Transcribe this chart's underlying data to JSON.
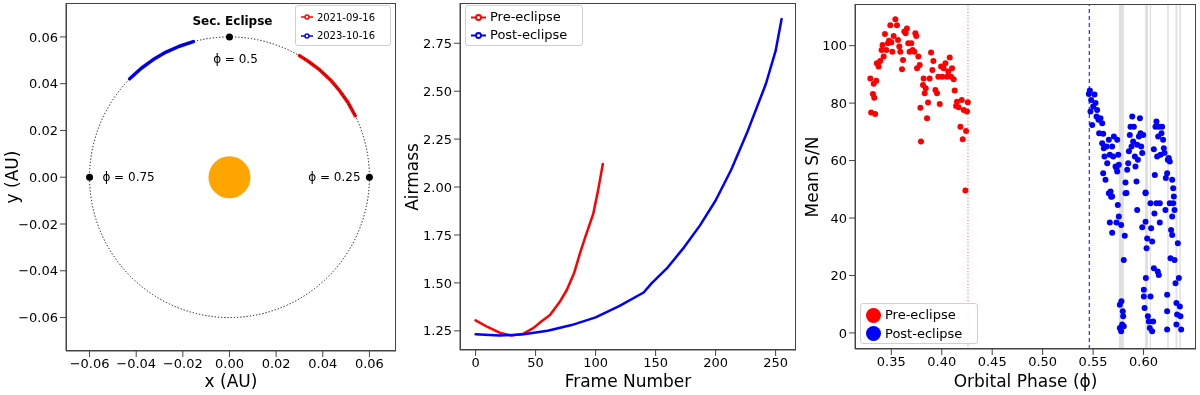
{
  "chart_data": [
    {
      "type": "line",
      "xlabel": "x (AU)",
      "ylabel": "y (AU)",
      "xlim": [
        -0.0701,
        0.0714
      ],
      "ylim": [
        -0.0743,
        0.0745
      ],
      "xticks": [
        {
          "value": -0.06,
          "label": "−0.06"
        },
        {
          "value": -0.04,
          "label": "−0.04"
        },
        {
          "value": -0.02,
          "label": "−0.02"
        },
        {
          "value": 0,
          "label": "0.00"
        },
        {
          "value": 0.02,
          "label": "0.02"
        },
        {
          "value": 0.04,
          "label": "0.04"
        },
        {
          "value": 0.06,
          "label": "0.06"
        }
      ],
      "yticks": [
        {
          "value": -0.06,
          "label": "−0.06"
        },
        {
          "value": -0.04,
          "label": "−0.04"
        },
        {
          "value": -0.02,
          "label": "−0.02"
        },
        {
          "value": 0,
          "label": "0.00"
        },
        {
          "value": 0.02,
          "label": "0.02"
        },
        {
          "value": 0.04,
          "label": "0.04"
        },
        {
          "value": 0.06,
          "label": "0.06"
        }
      ],
      "legend": "top right",
      "series": [
        {
          "name": "2021-09-16",
          "color": "#ff0000",
          "x": [
            0.03,
            0.0336,
            0.0386,
            0.0432,
            0.0473,
            0.0509,
            0.0539
          ],
          "values": [
            0.052,
            0.0497,
            0.046,
            0.0417,
            0.0369,
            0.0318,
            0.0263
          ]
        },
        {
          "name": "2023-10-16",
          "color": "#0000ff",
          "x": [
            -0.0428,
            -0.0378,
            -0.0327,
            -0.0272,
            -0.0215,
            -0.0155
          ],
          "values": [
            0.0421,
            0.0466,
            0.0503,
            0.0535,
            0.056,
            0.058
          ]
        },
        {
          "type": "scatter",
          "color": "#000000",
          "marker": "circle",
          "x": [
            0,
            0.06,
            -0.06
          ],
          "values": [
            0.06,
            0,
            0
          ]
        }
      ],
      "annotations": [
        {
          "text": "Sec. Eclipse",
          "x": 0,
          "y": 0.06
        },
        {
          "text": "ϕ = 0.5",
          "x": 0,
          "y": 0.06
        },
        {
          "text": "ϕ = 0.75",
          "x": -0.06,
          "y": 0
        },
        {
          "text": "ϕ = 0.25",
          "x": 0.06,
          "y": 0
        }
      ]
    },
    {
      "type": "line",
      "xlabel": "Frame Number",
      "ylabel": "Airmass",
      "xlim": [
        -13,
        267
      ],
      "ylim": [
        1.15,
        2.96
      ],
      "xticks": [
        0,
        50,
        100,
        150,
        200,
        250
      ],
      "yticks": [
        1.25,
        {
          "value": 1.5,
          "label": "1.50"
        },
        1.75,
        {
          "value": 2,
          "label": "2.00"
        },
        2.25,
        {
          "value": 2.5,
          "label": "2.50"
        },
        2.75
      ],
      "legend": "top left",
      "series": [
        {
          "name": "Pre-eclipse",
          "color": "#ff0000",
          "x": [
            0,
            10,
            20,
            30,
            40,
            48,
            55,
            62,
            70,
            76,
            82,
            87,
            92,
            98,
            102,
            106
          ],
          "values": [
            1.305,
            1.27,
            1.24,
            1.225,
            1.235,
            1.264,
            1.3,
            1.333,
            1.4,
            1.463,
            1.55,
            1.655,
            1.75,
            1.86,
            1.98,
            2.12
          ]
        },
        {
          "name": "Post-eclipse",
          "color": "#0000ff",
          "x": [
            0,
            20,
            40,
            60,
            80,
            100,
            120,
            140,
            147,
            160,
            173,
            187,
            200,
            213,
            226,
            242,
            250,
            255
          ],
          "values": [
            1.232,
            1.225,
            1.232,
            1.25,
            1.28,
            1.32,
            1.38,
            1.45,
            1.5,
            1.58,
            1.68,
            1.8,
            1.93,
            2.09,
            2.28,
            2.54,
            2.71,
            2.876
          ]
        }
      ]
    },
    {
      "type": "scatter",
      "xlabel": "Orbital Phase (ϕ)",
      "ylabel": "Mean S/N",
      "xlim": [
        0.314,
        0.652
      ],
      "ylim": [
        -5.6,
        114.5
      ],
      "xticks": [
        0.35,
        {
          "value": 0.4,
          "label": "0.40"
        },
        0.45,
        {
          "value": 0.5,
          "label": "0.50"
        },
        0.55,
        {
          "value": 0.6,
          "label": "0.60"
        }
      ],
      "yticks": [
        0,
        20,
        40,
        60,
        80,
        100
      ],
      "legend": "bottom left",
      "marker": "circle",
      "ref_lines": [
        {
          "axis": "x",
          "value": 0.426,
          "color": "#ff6666",
          "line_style": "dotted"
        },
        {
          "axis": "x",
          "value": 0.5462,
          "color": "#0000ff",
          "line_style": "dashed"
        }
      ],
      "bands": [
        {
          "axis": "x",
          "from": 0.5755,
          "to": 0.5805,
          "color": "#e0e0e0"
        },
        {
          "axis": "x",
          "from": 0.6015,
          "to": 0.6045,
          "color": "#e0e0e0"
        },
        {
          "axis": "x",
          "from": 0.6062,
          "to": 0.6075,
          "color": "#e0e0e0"
        },
        {
          "axis": "x",
          "from": 0.6235,
          "to": 0.625,
          "color": "#e0e0e0"
        },
        {
          "axis": "x",
          "from": 0.6317,
          "to": 0.6335,
          "color": "#e0e0e0"
        },
        {
          "axis": "x",
          "from": 0.6355,
          "to": 0.637,
          "color": "#e0e0e0"
        }
      ],
      "series": [
        {
          "name": "Pre-eclipse",
          "color": "#ff0000",
          "x": [
            0.3292,
            0.33,
            0.3318,
            0.3331,
            0.334,
            0.3325,
            0.3351,
            0.3357,
            0.3374,
            0.339,
            0.3403,
            0.3413,
            0.3424,
            0.3437,
            0.345,
            0.3467,
            0.3477,
            0.349,
            0.35,
            0.351,
            0.3523,
            0.354,
            0.3556,
            0.3566,
            0.3579,
            0.3589,
            0.3606,
            0.3616,
            0.3629,
            0.3642,
            0.3655,
            0.3668,
            0.3681,
            0.3698,
            0.3711,
            0.3728,
            0.3738,
            0.3747,
            0.3755,
            0.3768,
            0.3781,
            0.3788,
            0.3794,
            0.3814,
            0.382,
            0.3831,
            0.3841,
            0.3854,
            0.3864,
            0.388,
            0.3894,
            0.3907,
            0.3917,
            0.3937,
            0.3953,
            0.3966,
            0.398,
            0.3993,
            0.4006,
            0.4019,
            0.4036,
            0.4052,
            0.4065,
            0.4079,
            0.4092,
            0.4102,
            0.4118,
            0.4128,
            0.4142,
            0.4151,
            0.4168,
            0.4185,
            0.4198,
            0.4208,
            0.4218,
            0.4234,
            0.4241,
            0.425,
            0.4258
          ],
          "values": [
            88.6,
            76.7,
            83.2,
            81.9,
            76.2,
            86.7,
            87.8,
            93.9,
            92.7,
            94.7,
            98.5,
            100.2,
            96.2,
            104.1,
            98.5,
            100.8,
            101.7,
            107.1,
            101.2,
            97.9,
            103.4,
            109.2,
            107.1,
            102,
            99.7,
            97.9,
            91.8,
            95,
            104.9,
            104.3,
            106,
            100.8,
            97.9,
            100.8,
            98.5,
            97.9,
            104.3,
            103.4,
            92.1,
            96.2,
            93.3,
            78.4,
            66.6,
            86.3,
            88.6,
            83.4,
            85.2,
            74.7,
            80.2,
            88.6,
            97.6,
            91.5,
            94.7,
            84.6,
            83.4,
            89.2,
            79.7,
            92.7,
            89.2,
            92.1,
            93.9,
            89.2,
            91,
            95.9,
            89.2,
            92.1,
            88.3,
            84.4,
            79,
            80.5,
            78.6,
            71.8,
            81.1,
            67.4,
            77.6,
            49.6,
            70.3,
            77.1,
            80.3
          ]
        },
        {
          "name": "Post-eclipse",
          "color": "#0000ff",
          "x": [
            0.5458,
            0.5468,
            0.5481,
            0.5474,
            0.5491,
            0.5501,
            0.5514,
            0.5524,
            0.5534,
            0.554,
            0.5553,
            0.556,
            0.5573,
            0.559,
            0.56,
            0.559,
            0.5606,
            0.5613,
            0.56,
            0.5623,
            0.5633,
            0.564,
            0.5656,
            0.5666,
            0.5673,
            0.5689,
            0.5689,
            0.5699,
            0.5706,
            0.5722,
            0.5732,
            0.5739,
            0.5749,
            0.5755,
            0.5739,
            0.5821,
            0.5831,
            0.5838,
            0.5848,
            0.5855,
            0.5864,
            0.5871,
            0.5881,
            0.5888,
            0.5897,
            0.5904,
            0.5914,
            0.592,
            0.593,
            0.5937,
            0.5944,
            0.5954,
            0.5964,
            0.597,
            0.5977,
            0.5987,
            0.5997,
            0.602,
            0.6102,
            0.6112,
            0.6118,
            0.6128,
            0.6135,
            0.6145,
            0.6151,
            0.6168,
            0.6178,
            0.6184,
            0.6194,
            0.6201,
            0.6208,
            0.6221,
            0.6234,
            0.624,
            0.625,
            0.626,
            0.6284,
            0.6294,
            0.63,
            0.5656,
            0.5679,
            0.5666,
            0.5689,
            0.5732,
            0.5745,
            0.5755,
            0.5778,
            0.5765,
            0.5781,
            0.5794,
            0.5798,
            0.5765,
            0.5778,
            0.5788,
            0.5804,
            0.5804,
            0.5814,
            0.5821,
            0.5937,
            0.5987,
            0.602,
            0.6003,
            0.6003,
            0.601,
            0.6023,
            0.603,
            0.602,
            0.6036,
            0.6043,
            0.6052,
            0.6062,
            0.6069,
            0.6075,
            0.6085,
            0.6085,
            0.6095,
            0.6069,
            0.6102,
            0.6108,
            0.6128,
            0.6141,
            0.6151,
            0.6161,
            0.6161,
            0.6217,
            0.6234,
            0.6234,
            0.6234,
            0.626,
            0.6267,
            0.6273,
            0.6284,
            0.6284,
            0.6294,
            0.6307,
            0.6307,
            0.6317,
            0.6326,
            0.6333,
            0.6326,
            0.634,
            0.635,
            0.636,
            0.6366,
            0.6373
          ],
          "values": [
            83.2,
            84.4,
            81.1,
            77.1,
            72.4,
            78.8,
            83,
            80,
            75.3,
            77.6,
            74.2,
            69.5,
            74.7,
            73,
            69.3,
            66,
            64.3,
            61.4,
            55.6,
            53.3,
            64.9,
            59.1,
            67.2,
            62,
            49.2,
            47.5,
            64.9,
            61.4,
            68.4,
            57.9,
            57.4,
            67.2,
            62,
            58.5,
            56.2,
            52.4,
            48.7,
            56.8,
            59.1,
            63.2,
            68.9,
            71.8,
            64.9,
            75.3,
            66.6,
            71.8,
            61.4,
            57.9,
            52.7,
            65.5,
            60.3,
            68.4,
            74.7,
            69.5,
            64.9,
            62.6,
            68.9,
            48.9,
            63.9,
            55,
            71.8,
            73.6,
            61.4,
            68.4,
            71.8,
            62,
            69.5,
            71.8,
            67.2,
            64.3,
            62.6,
            53.9,
            55.6,
            60.3,
            60.9,
            59.7,
            53.3,
            50.4,
            47.5,
            48.6,
            47.4,
            38.4,
            34.9,
            38.4,
            44.5,
            40.5,
            37.6,
            9.8,
            11,
            7.5,
            5.8,
            1.7,
            0.6,
            2.9,
            2.3,
            25.4,
            33.8,
            48.6,
            42.8,
            36.8,
            38.7,
            15,
            12.7,
            8.7,
            19.1,
            29.5,
            48.6,
            32.9,
            5.8,
            4,
            1.7,
            45.1,
            36.4,
            31.8,
            0.6,
            4,
            12.7,
            22.5,
            41.6,
            45.1,
            21.4,
            20.2,
            38.4,
            45.1,
            42.8,
            13.3,
            7.5,
            1.2,
            45.1,
            26,
            35.8,
            40.5,
            34.1,
            45.1,
            25.4,
            42.8,
            17.3,
            10.4,
            6.4,
            2.9,
            31.2,
            19.1,
            9.2,
            5.8,
            1.2
          ]
        }
      ]
    }
  ]
}
